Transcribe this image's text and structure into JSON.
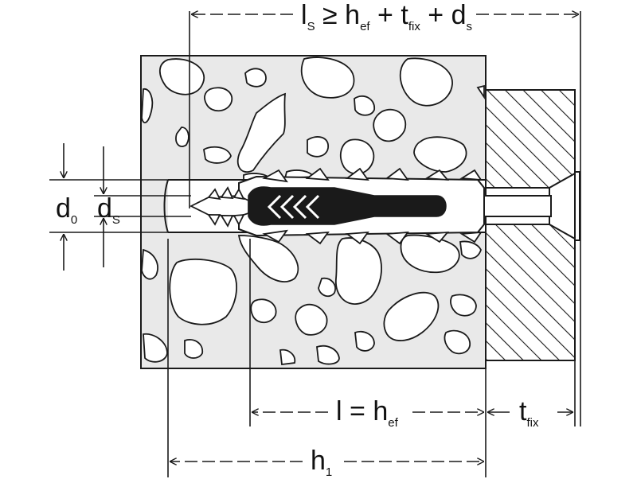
{
  "labels": {
    "screw_length": {
      "l": "l",
      "l_sub": "S",
      "geq": "≥",
      "h": "h",
      "h_sub": "ef",
      "plus1": "+",
      "t": "t",
      "t_sub": "fix",
      "plus2": "+",
      "d": "d",
      "d_sub": "s"
    },
    "drill_diameter": {
      "d": "d",
      "d_sub": "0"
    },
    "screw_diameter": {
      "d": "d",
      "d_sub": "S"
    },
    "anchor_length": {
      "l": "l",
      "eq": "=",
      "h": "h",
      "h_sub": "ef"
    },
    "fixture_thickness": {
      "t": "t",
      "t_sub": "fix"
    },
    "hole_depth": {
      "h": "h",
      "h_sub": "1"
    }
  },
  "colors": {
    "line": "#1a1a1a",
    "concrete": "#e9e9e9",
    "fixture": "#ffffff",
    "plug": "#1a1a1a",
    "background": "#ffffff"
  }
}
